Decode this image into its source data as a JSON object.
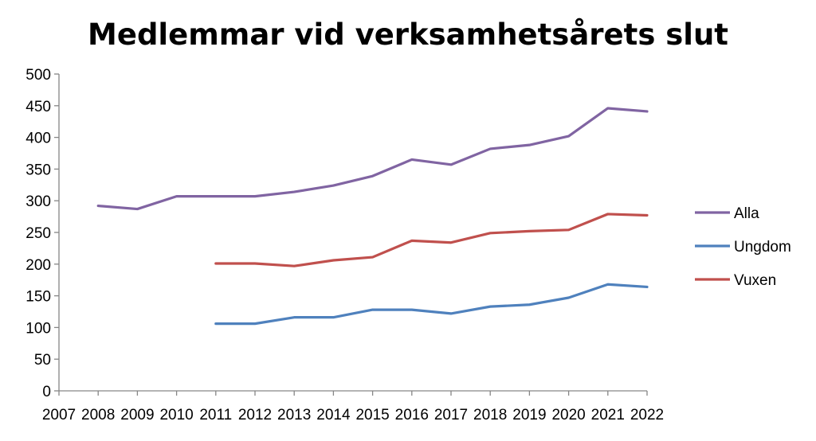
{
  "chart_data": {
    "type": "line",
    "title": "Medlemmar vid verksamhetsårets slut",
    "xlabel": "",
    "ylabel": "",
    "categories": [
      "2007",
      "2008",
      "2009",
      "2010",
      "2011",
      "2012",
      "2013",
      "2014",
      "2015",
      "2016",
      "2017",
      "2018",
      "2019",
      "2020",
      "2021",
      "2022"
    ],
    "ylim": [
      0,
      500
    ],
    "yticks": [
      "0",
      "50",
      "100",
      "150",
      "200",
      "250",
      "300",
      "350",
      "400",
      "450",
      "500"
    ],
    "grid": false,
    "legend_position": "right",
    "series": [
      {
        "name": "Alla",
        "color": "#8064a2",
        "values": [
          null,
          292,
          287,
          307,
          307,
          307,
          314,
          324,
          339,
          365,
          357,
          382,
          388,
          402,
          446,
          441
        ]
      },
      {
        "name": "Ungdom",
        "color": "#4f81bd",
        "values": [
          null,
          null,
          null,
          null,
          106,
          106,
          116,
          116,
          128,
          128,
          122,
          133,
          136,
          147,
          168,
          164
        ]
      },
      {
        "name": "Vuxen",
        "color": "#c0504d",
        "values": [
          null,
          null,
          null,
          null,
          201,
          201,
          197,
          206,
          211,
          237,
          234,
          249,
          252,
          254,
          279,
          277
        ]
      }
    ]
  }
}
